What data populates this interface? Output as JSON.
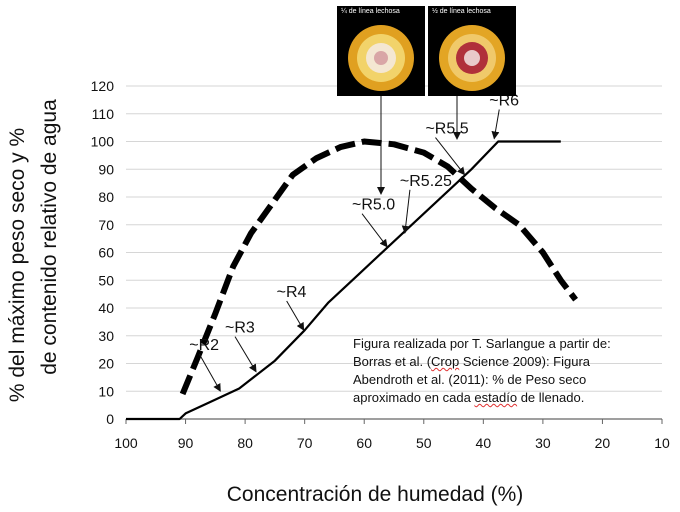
{
  "chart_data": {
    "type": "line",
    "xlabel": "Concentración de humedad  (%)",
    "ylabel_line1": "% del máximo peso seco  y %",
    "ylabel_line2": "de contenido relativo de agua",
    "xlim": [
      100,
      10
    ],
    "ylim": [
      0,
      120
    ],
    "x_ticks": [
      100,
      90,
      80,
      70,
      60,
      50,
      40,
      30,
      20,
      10
    ],
    "y_ticks": [
      0,
      10,
      20,
      30,
      40,
      50,
      60,
      70,
      80,
      90,
      100,
      110,
      120
    ],
    "grid": "horizontal",
    "series": [
      {
        "style": "solid",
        "points": [
          [
            100,
            0
          ],
          [
            91,
            0
          ],
          [
            90,
            2
          ],
          [
            86,
            6
          ],
          [
            81,
            11
          ],
          [
            75,
            21
          ],
          [
            70,
            32
          ],
          [
            66,
            42
          ],
          [
            61,
            52
          ],
          [
            56,
            62
          ],
          [
            51,
            72
          ],
          [
            46,
            82
          ],
          [
            42,
            90
          ],
          [
            37.5,
            100
          ],
          [
            30,
            100
          ],
          [
            27,
            100
          ]
        ]
      },
      {
        "style": "dashed",
        "points": [
          [
            90.5,
            9
          ],
          [
            88,
            22
          ],
          [
            85,
            38
          ],
          [
            82,
            55
          ],
          [
            79,
            67
          ],
          [
            75,
            79
          ],
          [
            72,
            88
          ],
          [
            68,
            94
          ],
          [
            64,
            98
          ],
          [
            60,
            100
          ],
          [
            55,
            99
          ],
          [
            50,
            96
          ],
          [
            46,
            91
          ],
          [
            42,
            83
          ],
          [
            38,
            76
          ],
          [
            34,
            70
          ],
          [
            30,
            60
          ],
          [
            27,
            50
          ],
          [
            24.5,
            43
          ]
        ]
      }
    ],
    "stage_labels": [
      {
        "text": "~R2",
        "arrow_to": [
          84,
          9
        ]
      },
      {
        "text": "~R3",
        "arrow_to": [
          78,
          16
        ]
      },
      {
        "text": "~R4",
        "arrow_to": [
          70,
          31
        ]
      },
      {
        "text": "~R5.0",
        "arrow_to": [
          56,
          61
        ]
      },
      {
        "text": "~R5.25",
        "arrow_to": [
          53,
          66
        ]
      },
      {
        "text": "~R5.5",
        "arrow_to": [
          43,
          87
        ]
      },
      {
        "text": "~R6",
        "arrow_to": [
          38,
          100
        ]
      }
    ]
  },
  "note": {
    "line1": "Figura realizada por T. Sarlangue a partir de:",
    "line2_a": "Borras et al. (",
    "line2_u": "Crop",
    "line2_b": " Science 2009): Figura",
    "line3": "Abendroth et al. (2011): % de Peso seco",
    "line4_a": "aproximado en cada ",
    "line4_u": "estadío",
    "line4_b": " de llenado."
  },
  "photos": [
    {
      "caption": "¼ de línea lechosa"
    },
    {
      "caption": "½ de línea lechosa"
    }
  ]
}
